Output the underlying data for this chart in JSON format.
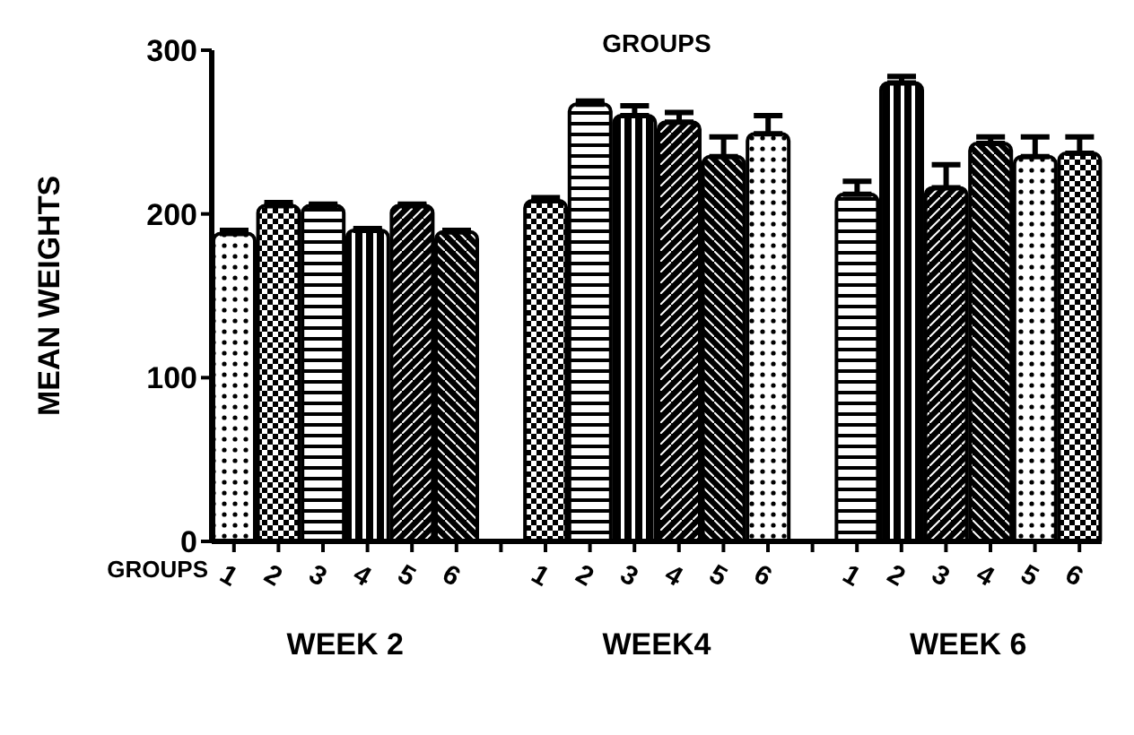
{
  "chart_data": {
    "type": "bar",
    "title": "GROUPS",
    "xlabel": "GROUPS",
    "ylabel": "MEAN WEIGHTS",
    "categories": [
      "1",
      "2",
      "3",
      "4",
      "5",
      "6",
      null,
      "1",
      "2",
      "3",
      "4",
      "5",
      "6",
      null,
      "1",
      "2",
      "3",
      "4",
      "5",
      "6"
    ],
    "values": [
      188,
      205,
      205,
      190,
      205,
      189,
      null,
      208,
      267,
      260,
      256,
      235,
      249,
      null,
      212,
      280,
      216,
      243,
      235,
      237
    ],
    "errors": [
      [
        188,
        190
      ],
      [
        205,
        207
      ],
      [
        205,
        206
      ],
      [
        190,
        191
      ],
      [
        205,
        206
      ],
      [
        189,
        190
      ],
      null,
      [
        208,
        210
      ],
      [
        267,
        269
      ],
      [
        260,
        266
      ],
      [
        256,
        262
      ],
      [
        235,
        247
      ],
      [
        249,
        260
      ],
      null,
      [
        212,
        220
      ],
      [
        280,
        284
      ],
      [
        216,
        230
      ],
      [
        243,
        247
      ],
      [
        235,
        247
      ],
      [
        237,
        247
      ]
    ],
    "colors": [
      "#000000",
      "#000000",
      "#000000",
      "#000000",
      "#000000",
      "#000000",
      "#000000",
      "#000000",
      "#000000",
      "#000000",
      "#000000",
      "#000000",
      "#000000",
      "#000000",
      "#000000",
      "#000000",
      "#000000",
      "#000000",
      "#000000",
      "#000000"
    ],
    "annotations": [
      "WEEK 2",
      "WEEK4",
      "WEEK 6"
    ],
    "ylim": [
      0,
      300
    ],
    "yticks": [
      0,
      100,
      200,
      300
    ],
    "grid": false,
    "legend": false
  }
}
